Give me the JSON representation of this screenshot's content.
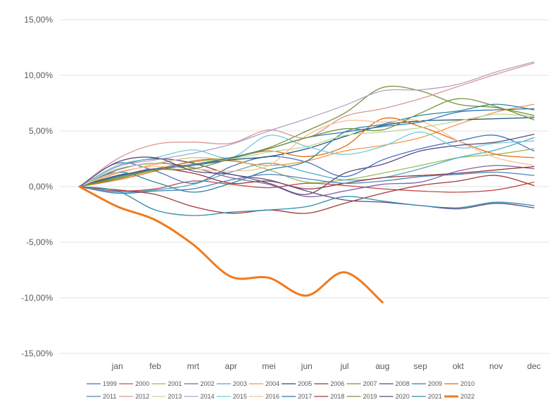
{
  "chart_data": {
    "type": "line",
    "title": "",
    "xlabel": "",
    "ylabel": "",
    "categories": [
      "",
      "jan",
      "feb",
      "mrt",
      "apr",
      "mei",
      "jun",
      "jul",
      "aug",
      "sep",
      "okt",
      "nov",
      "dec"
    ],
    "y_ticks": [
      "15,00%",
      "10,00%",
      "5,00%",
      "0,00%",
      "-5,00%",
      "-10,00%",
      "-15,00%"
    ],
    "ylim": [
      -15,
      15
    ],
    "grid": true,
    "legend_position": "bottom",
    "series": [
      {
        "name": "1999",
        "color": "#4472C4",
        "values": [
          0,
          2.1,
          1.4,
          0.3,
          1.8,
          2.7,
          2.2,
          0.9,
          2.4,
          3.4,
          4.1,
          4.6,
          3.2
        ]
      },
      {
        "name": "2000",
        "color": "#C0504D",
        "values": [
          0,
          -0.4,
          -0.2,
          0.5,
          0.2,
          -0.1,
          0.3,
          0.1,
          -0.2,
          -0.4,
          -0.5,
          -0.3,
          0.4
        ]
      },
      {
        "name": "2001",
        "color": "#9BBB59",
        "values": [
          0,
          0.8,
          1.6,
          2.2,
          2.4,
          1.5,
          0.4,
          0.6,
          1.2,
          1.9,
          2.6,
          2.9,
          3.4
        ]
      },
      {
        "name": "2002",
        "color": "#8064A2",
        "values": [
          0,
          1.5,
          2.1,
          1.7,
          0.8,
          0.2,
          -0.9,
          -0.4,
          0.2,
          0.4,
          1.4,
          1.9,
          1.6
        ]
      },
      {
        "name": "2003",
        "color": "#4BACC6",
        "values": [
          0,
          -0.5,
          -0.3,
          0.2,
          1.3,
          2.1,
          1.3,
          0.6,
          0.8,
          1.6,
          2.6,
          3.3,
          4.4
        ]
      },
      {
        "name": "2004",
        "color": "#F79646",
        "values": [
          0,
          1.2,
          2.0,
          2.6,
          2.3,
          1.9,
          2.3,
          3.2,
          3.7,
          4.4,
          5.6,
          6.7,
          7.4
        ]
      },
      {
        "name": "2005",
        "color": "#1F4E79",
        "values": [
          0,
          1.0,
          1.5,
          1.9,
          2.4,
          2.7,
          3.4,
          4.5,
          5.5,
          5.9,
          6.0,
          6.1,
          6.2
        ]
      },
      {
        "name": "2006",
        "color": "#943634",
        "values": [
          0,
          0.9,
          1.6,
          1.2,
          0.3,
          0.5,
          -0.2,
          0.3,
          0.8,
          1.0,
          1.2,
          1.5,
          1.8
        ]
      },
      {
        "name": "2007",
        "color": "#76923C",
        "values": [
          0,
          0.7,
          1.5,
          1.9,
          2.6,
          3.5,
          5.0,
          6.6,
          8.9,
          8.6,
          7.4,
          7.1,
          6.4
        ]
      },
      {
        "name": "2008",
        "color": "#5F497A",
        "values": [
          0,
          1.8,
          2.5,
          2.1,
          1.1,
          0.6,
          -0.4,
          -1.2,
          -1.4,
          -1.7,
          -2.0,
          -1.5,
          -1.9
        ]
      },
      {
        "name": "2009",
        "color": "#31849B",
        "values": [
          0,
          1.3,
          0.4,
          -0.5,
          0.3,
          1.5,
          2.3,
          4.9,
          5.6,
          6.4,
          6.8,
          7.4,
          6.9
        ]
      },
      {
        "name": "2010",
        "color": "#E36C09",
        "values": [
          0,
          0.6,
          1.4,
          2.3,
          2.6,
          3.2,
          2.7,
          3.6,
          6.1,
          5.4,
          4.1,
          2.9,
          2.6
        ]
      },
      {
        "name": "2011",
        "color": "#4F81BD",
        "values": [
          0,
          -0.6,
          -0.4,
          -0.2,
          0.6,
          1.1,
          0.7,
          0.3,
          0.5,
          0.9,
          1.1,
          1.3,
          1.0
        ]
      },
      {
        "name": "2012",
        "color": "#D99694",
        "values": [
          0,
          2.5,
          3.8,
          4.0,
          3.9,
          5.1,
          4.4,
          6.3,
          7.0,
          7.9,
          9.0,
          10.1,
          11.1
        ]
      },
      {
        "name": "2013",
        "color": "#C3D69B",
        "values": [
          0,
          1.6,
          2.1,
          2.6,
          2.5,
          3.1,
          3.6,
          4.6,
          4.9,
          5.3,
          5.9,
          6.5,
          6.3
        ]
      },
      {
        "name": "2014",
        "color": "#B2A1C7",
        "values": [
          0,
          1.8,
          2.4,
          3.0,
          3.8,
          5.0,
          6.1,
          7.3,
          8.6,
          8.7,
          9.2,
          10.3,
          11.2
        ]
      },
      {
        "name": "2015",
        "color": "#6ECDDD",
        "values": [
          0,
          1.9,
          2.6,
          3.3,
          2.6,
          4.6,
          3.6,
          2.9,
          3.6,
          4.9,
          3.5,
          3.9,
          4.1
        ]
      },
      {
        "name": "2016",
        "color": "#FAC090",
        "values": [
          0,
          1.3,
          1.8,
          1.6,
          1.4,
          1.9,
          4.6,
          5.9,
          5.8,
          5.9,
          4.1,
          2.6,
          1.9
        ]
      },
      {
        "name": "2017",
        "color": "#2E75B6",
        "values": [
          0,
          0.9,
          1.6,
          2.0,
          2.6,
          3.4,
          4.4,
          4.9,
          5.4,
          5.8,
          6.7,
          6.9,
          7.0
        ]
      },
      {
        "name": "2018",
        "color": "#9E3A38",
        "values": [
          0,
          -0.3,
          -0.7,
          -1.8,
          -2.4,
          -2.1,
          -2.4,
          -1.5,
          -0.6,
          0.1,
          0.5,
          1.0,
          0.1
        ]
      },
      {
        "name": "2019",
        "color": "#789440",
        "values": [
          0,
          0.8,
          1.5,
          1.6,
          2.5,
          3.4,
          4.4,
          5.2,
          5.1,
          6.6,
          7.9,
          7.2,
          6.0
        ]
      },
      {
        "name": "2020",
        "color": "#604A7B",
        "values": [
          0,
          2.2,
          2.6,
          1.4,
          1.1,
          0.3,
          -0.7,
          1.2,
          2.0,
          3.2,
          3.7,
          4.0,
          4.7
        ]
      },
      {
        "name": "2021",
        "color": "#2F8AB0",
        "values": [
          0,
          -0.4,
          -2.1,
          -2.6,
          -2.3,
          -2.1,
          -1.8,
          -0.9,
          -1.3,
          -1.7,
          -1.9,
          -1.4,
          -1.7
        ]
      },
      {
        "name": "2022",
        "color": "#F07A1E",
        "values": [
          0,
          -1.8,
          -3.0,
          -5.2,
          -8.1,
          -8.2,
          -9.8,
          -7.7,
          -10.4,
          null,
          null,
          null,
          null
        ]
      }
    ]
  }
}
